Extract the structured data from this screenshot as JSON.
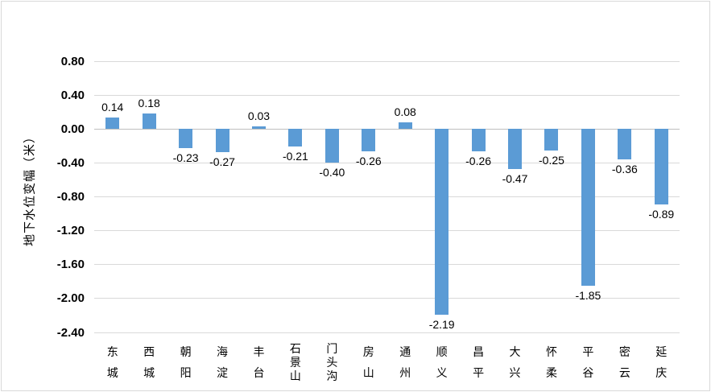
{
  "chart_data": {
    "type": "bar",
    "title": "",
    "ylabel": "地下水位变幅（米）",
    "xlabel": "",
    "categories": [
      "东城",
      "西城",
      "朝阳",
      "海淀",
      "丰台",
      "石景山",
      "门头沟",
      "房山",
      "通州",
      "顺义",
      "昌平",
      "大兴",
      "怀柔",
      "平谷",
      "密云",
      "延庆"
    ],
    "values": [
      0.14,
      0.18,
      -0.23,
      -0.27,
      0.03,
      -0.21,
      -0.4,
      -0.26,
      0.08,
      -2.19,
      -0.26,
      -0.47,
      -0.25,
      -1.85,
      -0.36,
      -0.89
    ],
    "value_labels": [
      "0.14",
      "0.18",
      "-0.23",
      "-0.27",
      "0.03",
      "-0.21",
      "-0.40",
      "-0.26",
      "0.08",
      "-2.19",
      "-0.26",
      "-0.47",
      "-0.25",
      "-1.85",
      "-0.36",
      "-0.89"
    ],
    "yticks": [
      "0.80",
      "0.40",
      "0.00",
      "-0.40",
      "-0.80",
      "-1.20",
      "-1.60",
      "-2.00",
      "-2.40"
    ],
    "ylim": [
      -2.4,
      0.8
    ],
    "grid": "on",
    "legend": "none",
    "colors": {
      "bar": "#5b9bd5",
      "gridline": "#d9d9d9",
      "zero_line": "#bfbfbf",
      "text": "#000000",
      "frame_border": "#d9d9d9"
    }
  }
}
